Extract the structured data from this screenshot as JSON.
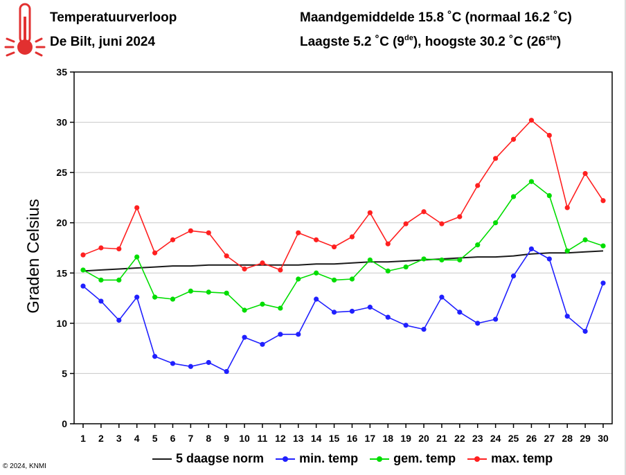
{
  "header": {
    "title": "Temperatuurverloop",
    "subtitle": "De Bilt, juni 2024",
    "stats_line1": "Maandgemiddelde 15.8 ˚C (normaal 16.2 ˚C)",
    "stats_line2_a": "Laagste 5.2 ˚C (9",
    "stats_line2_sup1": "de",
    "stats_line2_b": "), hoogste 30.2 ˚C (26",
    "stats_line2_sup2": "ste",
    "stats_line2_c": ")"
  },
  "copyright": "© 2024, KNMI",
  "icon": "thermometer-icon",
  "chart_data": {
    "type": "line",
    "title": "Temperatuurverloop",
    "subtitle": "De Bilt, juni 2024",
    "xlabel": "",
    "ylabel": "Graden Celsius",
    "xlim": [
      1,
      30
    ],
    "ylim": [
      0,
      35
    ],
    "yticks": [
      0,
      5,
      10,
      15,
      20,
      25,
      30,
      35
    ],
    "x": [
      1,
      2,
      3,
      4,
      5,
      6,
      7,
      8,
      9,
      10,
      11,
      12,
      13,
      14,
      15,
      16,
      17,
      18,
      19,
      20,
      21,
      22,
      23,
      24,
      25,
      26,
      27,
      28,
      29,
      30
    ],
    "grid": "horizontal",
    "legend_position": "bottom",
    "series": [
      {
        "name": "5 daagse norm",
        "color": "#1a1a1a",
        "markers": false,
        "values": [
          15.2,
          15.3,
          15.4,
          15.5,
          15.6,
          15.7,
          15.7,
          15.8,
          15.8,
          15.8,
          15.8,
          15.8,
          15.8,
          15.9,
          15.9,
          16.0,
          16.1,
          16.1,
          16.2,
          16.3,
          16.4,
          16.5,
          16.6,
          16.6,
          16.7,
          16.9,
          17.0,
          17.0,
          17.1,
          17.2
        ]
      },
      {
        "name": "min. temp",
        "color": "#2020ff",
        "markers": true,
        "values": [
          13.7,
          12.2,
          10.3,
          12.6,
          6.7,
          6.0,
          5.7,
          6.1,
          5.2,
          8.6,
          7.9,
          8.9,
          8.9,
          12.4,
          11.1,
          11.2,
          11.6,
          10.6,
          9.8,
          9.4,
          12.6,
          11.1,
          10.0,
          10.4,
          14.7,
          17.4,
          16.4,
          10.7,
          9.2,
          14.0
        ]
      },
      {
        "name": "gem. temp",
        "color": "#00dd00",
        "markers": true,
        "values": [
          15.3,
          14.3,
          14.3,
          16.6,
          12.6,
          12.4,
          13.2,
          13.1,
          13.0,
          11.3,
          11.9,
          11.5,
          14.4,
          15.0,
          14.3,
          14.4,
          16.3,
          15.2,
          15.6,
          16.4,
          16.3,
          16.3,
          17.8,
          20.0,
          22.6,
          24.1,
          22.7,
          17.2,
          18.3,
          17.7
        ]
      },
      {
        "name": "max. temp",
        "color": "#ff2020",
        "markers": true,
        "values": [
          16.8,
          17.5,
          17.4,
          21.5,
          17.0,
          18.3,
          19.2,
          19.0,
          16.7,
          15.4,
          16.0,
          15.3,
          19.0,
          18.3,
          17.6,
          18.6,
          21.0,
          17.9,
          19.9,
          21.1,
          19.9,
          20.6,
          23.7,
          26.4,
          28.3,
          30.2,
          28.7,
          21.5,
          24.9,
          22.2
        ]
      }
    ]
  }
}
